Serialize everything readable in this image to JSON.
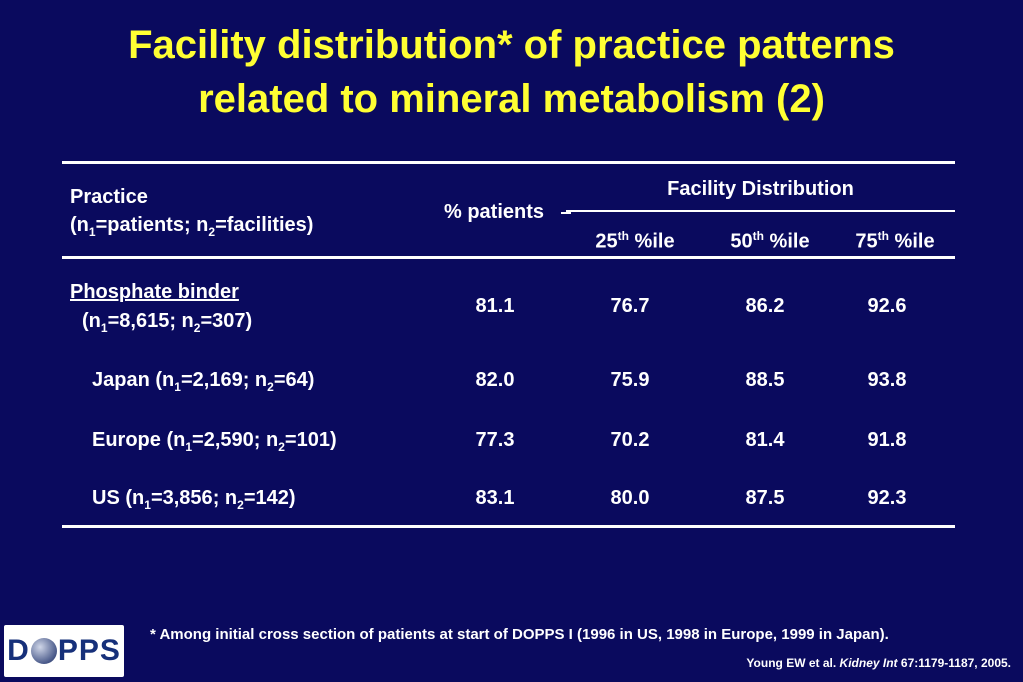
{
  "title": {
    "line1": "Facility distribution* of practice patterns",
    "line2": "related to mineral metabolism (2)"
  },
  "table": {
    "col_practice": {
      "line1": "Practice",
      "open": "(n",
      "sub1": "1",
      "mid": "=patients; n",
      "sub2": "2",
      "close": "=facilities)"
    },
    "col_pct": "% patients",
    "col_facility": "Facility Distribution",
    "col_25": {
      "num": "25",
      "sup": "th",
      "rest": " %ile"
    },
    "col_50": {
      "num": "50",
      "sup": "th",
      "rest": " %ile"
    },
    "col_75": {
      "num": "75",
      "sup": "th",
      "rest": " %ile"
    },
    "rows": [
      {
        "label": "Phosphate binder",
        "n1": "8,615",
        "n2": "307",
        "pct": "81.1",
        "p25": "76.7",
        "p50": "86.2",
        "p75": "92.6"
      },
      {
        "label": "Japan",
        "n1": "2,169",
        "n2": "64",
        "pct": "82.0",
        "p25": "75.9",
        "p50": "88.5",
        "p75": "93.8"
      },
      {
        "label": "Europe",
        "n1": "2,590",
        "n2": "101",
        "pct": "77.3",
        "p25": "70.2",
        "p50": "81.4",
        "p75": "91.8"
      },
      {
        "label": "US",
        "n1": "3,856",
        "n2": "142",
        "pct": "83.1",
        "p25": "80.0",
        "p50": "87.5",
        "p75": "92.3"
      }
    ],
    "sym": {
      "open": "(n",
      "sub1": "1",
      "eq": "=",
      "semi": "; n",
      "sub2": "2",
      "close": ")"
    }
  },
  "footnote": "* Among initial cross section of patients at start of DOPPS I (1996 in US, 1998 in Europe, 1999 in Japan).",
  "citation": {
    "authors": "Young EW et al. ",
    "journal": "Kidney Int",
    "ref": " 67:1179-1187, 2005."
  },
  "logo": {
    "left": "D",
    "right": "PPS"
  }
}
